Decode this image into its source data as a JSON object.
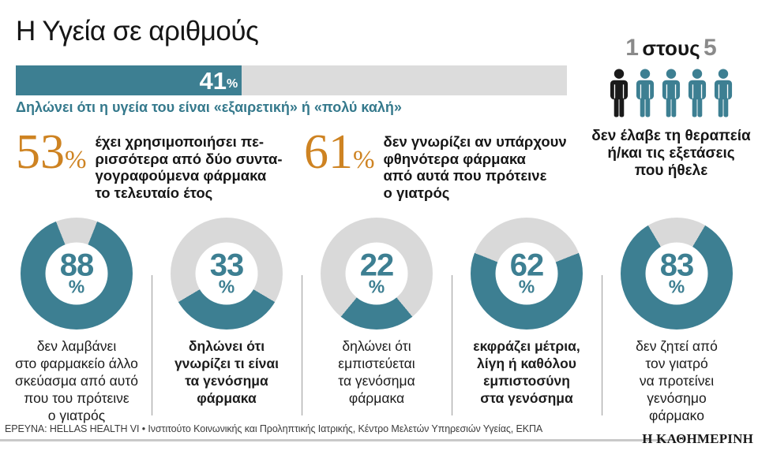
{
  "theme": {
    "teal": "#3d7f92",
    "teal_text": "#35798c",
    "orange": "#ce8322",
    "track_gray": "#dcdcdc",
    "donut_gray": "#d9d9d9",
    "black": "#1a1a1a",
    "number_gray": "#8a8a8a"
  },
  "ui": {
    "percent_sign": "%"
  },
  "header": {
    "title": "Η Υγεία σε αριθμούς"
  },
  "bar": {
    "value": 41,
    "value_label": "41",
    "caption": "Δηλώνει ότι η υγεία του είναι «εξαιρετική» ή «πολύ καλή»"
  },
  "stats": [
    {
      "number": "53",
      "text_lines": [
        "έχει χρησιμοποιήσει πε-",
        "ρισσότερα από δύο συντα-",
        "γογραφούμενα φάρμακα",
        "το τελευταίο έτος"
      ]
    },
    {
      "number": "61",
      "text_lines": [
        "δεν γνωρίζει αν υπάρχουν",
        "φθηνότερα φάρμακα",
        "από αυτά που πρότεινε",
        "ο γιατρός"
      ]
    }
  ],
  "ratio": {
    "numerator": "1",
    "word": "στους",
    "denominator": "5",
    "icons_total": 5,
    "icons_highlighted": 1,
    "caption_lines": [
      "δεν έλαβε τη θεραπεία",
      "ή/και τις εξετάσεις",
      "που ήθελε"
    ]
  },
  "donuts": [
    {
      "value": 88,
      "bold": false,
      "caption_lines": [
        "δεν λαμβάνει",
        "στο φαρμακείο άλλο",
        "σκεύασμα από αυτό",
        "που του πρότεινε",
        "ο γιατρός"
      ]
    },
    {
      "value": 33,
      "bold": true,
      "caption_lines": [
        "δηλώνει ότι",
        "γνωρίζει τι είναι",
        "τα γενόσημα",
        "φάρμακα"
      ]
    },
    {
      "value": 22,
      "bold": false,
      "caption_lines": [
        "δηλώνει ότι",
        "εμπιστεύεται",
        "τα γενόσημα",
        "φάρμακα"
      ]
    },
    {
      "value": 62,
      "bold": true,
      "caption_lines": [
        "εκφράζει μέτρια,",
        "λίγη ή καθόλου",
        "εμπιστοσύνη",
        "στα γενόσημα"
      ]
    },
    {
      "value": 83,
      "bold": false,
      "caption_lines": [
        "δεν ζητεί από",
        "τον γιατρό",
        "να προτείνει",
        "γενόσημο",
        "φάρμακο"
      ]
    }
  ],
  "footer": {
    "source": "ΕΡΕΥΝΑ: HELLAS HEALTH VI • Ινστιτούτο Κοινωνικής και Προληπτικής Ιατρικής, Κέντρο Μελετών Υπηρεσιών Υγείας, ΕΚΠΑ",
    "logo": "Η ΚΑΘΗΜΕΡΙΝΗ"
  },
  "chart_data": [
    {
      "type": "bar",
      "orientation": "horizontal",
      "categories": [
        "Δηλώνει ότι η υγεία του είναι «εξαιρετική» ή «πολύ καλή»"
      ],
      "values": [
        41
      ],
      "unit": "%",
      "xlim": [
        0,
        100
      ],
      "title": "Η Υγεία σε αριθμούς",
      "bar_color": "#3d7f92",
      "track_color": "#dcdcdc"
    },
    {
      "type": "pie",
      "subtype": "donut-multiples",
      "unit": "%",
      "series": [
        {
          "label": "δεν λαμβάνει στο φαρμακείο άλλο σκεύασμα από αυτό που του πρότεινε ο γιατρός",
          "value": 88
        },
        {
          "label": "δηλώνει ότι γνωρίζει τι είναι τα γενόσημα φάρμακα",
          "value": 33
        },
        {
          "label": "δηλώνει ότι εμπιστεύεται τα γενόσημα φάρμακα",
          "value": 22
        },
        {
          "label": "εκφράζει μέτρια, λίγη ή καθόλου εμπιστοσύνη στα γενόσημα",
          "value": 62
        },
        {
          "label": "δεν ζητεί από τον γιατρό να προτείνει γενόσημο φάρμακο",
          "value": 83
        }
      ],
      "filled_color": "#3d7f92",
      "remainder_color": "#d9d9d9"
    },
    {
      "type": "pictogram",
      "label": "δεν έλαβε τη θεραπεία ή/και τις εξετάσεις που ήθελε",
      "value_text": "1 στους 5",
      "highlighted": 1,
      "total": 5
    },
    {
      "type": "stat",
      "value": 53,
      "unit": "%",
      "label": "έχει χρησιμοποιήσει περισσότερα από δύο συνταγογραφούμενα φάρμακα το τελευταίο έτος"
    },
    {
      "type": "stat",
      "value": 61,
      "unit": "%",
      "label": "δεν γνωρίζει αν υπάρχουν φθηνότερα φάρμακα από αυτά που πρότεινε ο γιατρός"
    }
  ]
}
